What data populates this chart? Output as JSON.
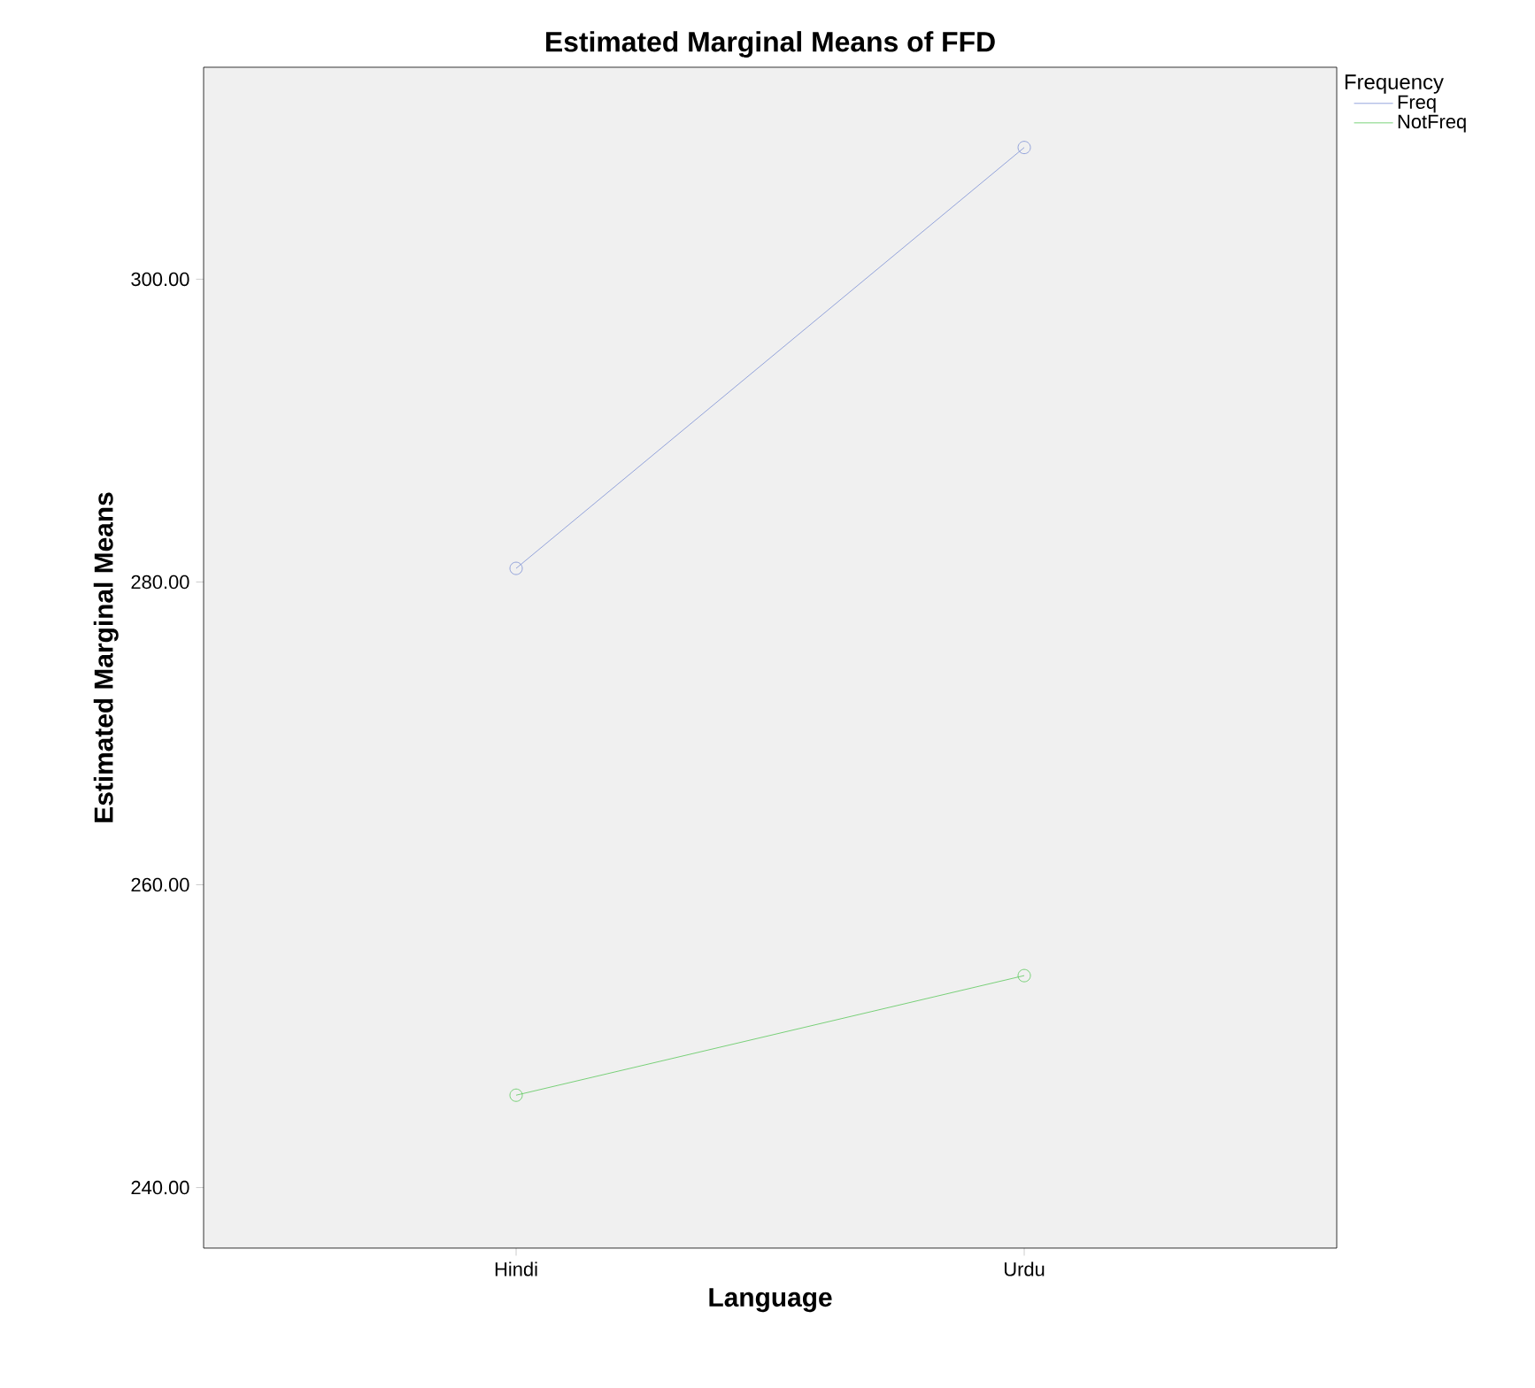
{
  "chart_data": {
    "type": "line",
    "title": "Estimated Marginal Means of FFD",
    "xlabel": "Language",
    "ylabel": "Estimated Marginal Means",
    "legend_title": "Frequency",
    "categories": [
      "Hindi",
      "Urdu"
    ],
    "series": [
      {
        "name": "Freq",
        "color": "#7b8fd4",
        "values": [
          280.9,
          308.7
        ]
      },
      {
        "name": "NotFreq",
        "color": "#5ac85a",
        "values": [
          246.1,
          254.0
        ]
      }
    ],
    "ylim": [
      236,
      314
    ],
    "yticks": [
      {
        "value": 240,
        "label": "240.00"
      },
      {
        "value": 260,
        "label": "260.00"
      },
      {
        "value": 280,
        "label": "280.00"
      },
      {
        "value": 300,
        "label": "300.00"
      }
    ],
    "grid": false,
    "legend": "top right",
    "marker": "circle",
    "line_style": "solid"
  }
}
